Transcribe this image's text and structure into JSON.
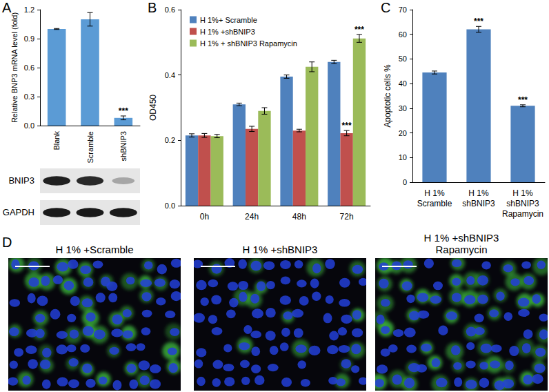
{
  "chart_data": [
    {
      "type": "bar",
      "y_label": "Relative BNP3 mRNA level (fold)",
      "categories": [
        "Blank",
        "Scramble",
        "shBNIP3"
      ],
      "values": [
        1.0,
        1.1,
        0.08
      ],
      "errors": [
        0.005,
        0.07,
        0.02
      ],
      "color": "#5b9bd5",
      "ylim": [
        0,
        1.2
      ],
      "yticks": [
        {
          "value": 0,
          "label": "0.0"
        },
        {
          "value": 0.3,
          "label": "0.3"
        },
        {
          "value": 0.6,
          "label": "0.6"
        },
        {
          "value": 0.9,
          "label": "0.9"
        },
        {
          "value": 1.2,
          "label": "1.2"
        }
      ],
      "grid": false,
      "annotations": [
        {
          "category": "shBNIP3",
          "text": "***"
        }
      ]
    },
    {
      "type": "bar",
      "y_label": "OD450",
      "categories": [
        "0h",
        "24h",
        "48h",
        "72h"
      ],
      "series": [
        {
          "name": "H 1%+ Scramble",
          "color": "#4f81bd",
          "values": [
            0.215,
            0.31,
            0.395,
            0.44
          ],
          "errors": [
            0.005,
            0.004,
            0.005,
            0.005
          ]
        },
        {
          "name": "H 1% +shBNIP3",
          "color": "#c0504d",
          "values": [
            0.215,
            0.235,
            0.23,
            0.222
          ],
          "errors": [
            0.006,
            0.008,
            0.004,
            0.008
          ]
        },
        {
          "name": "H 1% + shBNIP3 Rapamycin",
          "color": "#9bbb59",
          "values": [
            0.213,
            0.29,
            0.425,
            0.512
          ],
          "errors": [
            0.005,
            0.01,
            0.015,
            0.012
          ]
        }
      ],
      "ylim": [
        0,
        0.6
      ],
      "yticks": [
        {
          "value": 0,
          "label": "0.0"
        },
        {
          "value": 0.2,
          "label": "0.2"
        },
        {
          "value": 0.4,
          "label": "0.4"
        },
        {
          "value": 0.6,
          "label": "0.6"
        }
      ],
      "grid": false,
      "legend": "top-left",
      "annotations": [
        {
          "series": "H 1% +shBNIP3",
          "category": "72h",
          "text": "***"
        },
        {
          "series": "H 1% + shBNIP3 Rapamycin",
          "category": "72h",
          "text": "***"
        }
      ]
    },
    {
      "type": "bar",
      "y_label": "Apoptotic cells %",
      "categories": [
        "H 1%\nScramble",
        "H 1%\nshBNIP3",
        "H 1%\nshBNIP3\nRapamycin"
      ],
      "values": [
        44.5,
        62,
        31
      ],
      "errors": [
        0.6,
        1.2,
        0.4
      ],
      "color": "#4f81bd",
      "ylim": [
        0,
        70
      ],
      "yticks": [
        0,
        10,
        20,
        30,
        40,
        50,
        60,
        70
      ],
      "grid": false,
      "annotations": [
        {
          "category": "H 1%\nshBNIP3",
          "text": "***"
        },
        {
          "category": "H 1%\nshBNIP3\nRapamycin",
          "text": "***"
        }
      ]
    }
  ],
  "panel_labels": [
    "A",
    "B",
    "C",
    "D"
  ],
  "blot": {
    "rows": [
      "BNIP3",
      "GAPDH"
    ]
  },
  "images": [
    {
      "title": "H 1% +Scramble"
    },
    {
      "title": "H 1% +shBNIP3"
    },
    {
      "title": "H 1% +shBNIP3\nRapamycin"
    }
  ]
}
